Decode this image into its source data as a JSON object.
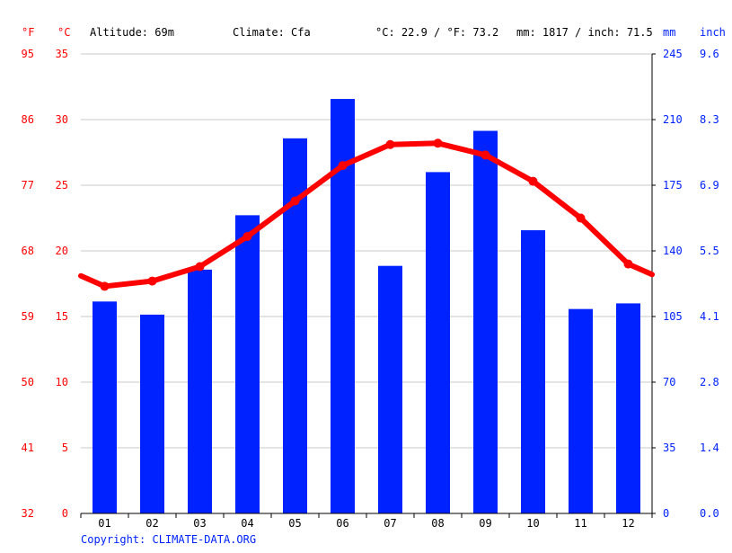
{
  "colors": {
    "temperature": "#ff0000",
    "precipitation": "#0022ff",
    "grid": "#c8c8c8",
    "axis": "#000000"
  },
  "header": {
    "unit_f": "°F",
    "unit_c": "°C",
    "altitude": "Altitude: 69m",
    "climate": "Climate: Cfa",
    "temperature_avg": "°C: 22.9 / °F: 73.2",
    "precipitation_total": "mm: 1817 / inch: 71.5",
    "unit_mm": "mm",
    "unit_inch": "inch"
  },
  "copyright": "Copyright: CLIMATE-DATA.ORG",
  "chart_data": {
    "type": "bar+line",
    "categories": [
      "01",
      "02",
      "03",
      "04",
      "05",
      "06",
      "07",
      "08",
      "09",
      "10",
      "11",
      "12"
    ],
    "precipitation_mm": [
      113,
      106,
      130,
      159,
      200,
      221,
      132,
      182,
      204,
      151,
      109,
      112
    ],
    "temperature_c": [
      17.3,
      17.7,
      18.8,
      21.1,
      23.8,
      26.5,
      28.1,
      28.2,
      27.3,
      25.3,
      22.5,
      19.0
    ],
    "temperature_line_ends_c": [
      18.1,
      18.2
    ],
    "axes": {
      "left_c": {
        "min": 0,
        "max": 35,
        "ticks": [
          "0",
          "5",
          "10",
          "15",
          "20",
          "25",
          "30",
          "35"
        ]
      },
      "left_f": {
        "ticks": [
          "32",
          "41",
          "50",
          "59",
          "68",
          "77",
          "86",
          "95"
        ]
      },
      "right_mm": {
        "min": 0,
        "max": 245,
        "ticks": [
          "0",
          "35",
          "70",
          "105",
          "140",
          "175",
          "210",
          "245"
        ]
      },
      "right_inch": {
        "ticks": [
          "0.0",
          "1.4",
          "2.8",
          "4.1",
          "5.5",
          "6.9",
          "8.3",
          "9.6"
        ]
      }
    },
    "grid": true
  }
}
